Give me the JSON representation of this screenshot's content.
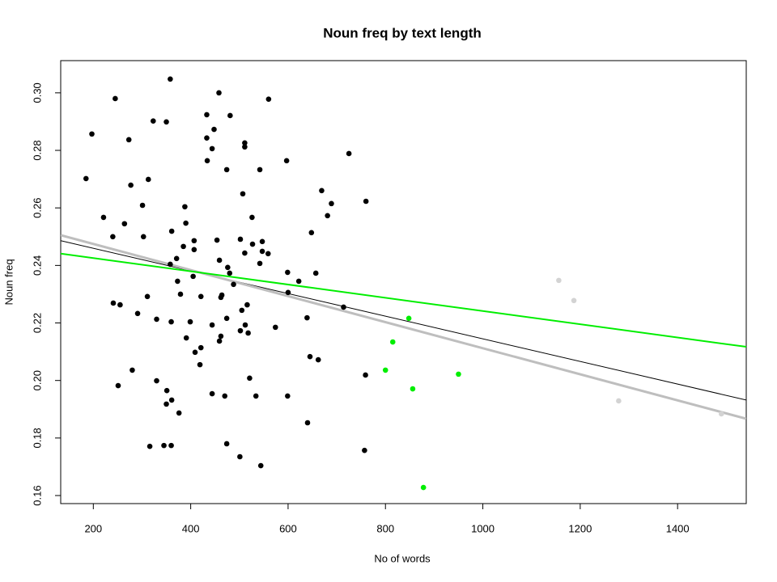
{
  "chart_data": {
    "type": "scatter",
    "title": "Noun freq by text length",
    "x_label": "No of words",
    "y_label": "Noun freq",
    "xlim": [
      133,
      1541
    ],
    "ylim": [
      0.1572,
      0.3112
    ],
    "xticks": [
      200,
      400,
      600,
      800,
      1000,
      1200,
      1400
    ],
    "yticks": [
      0.16,
      0.18,
      {
        "value": 0.2,
        "label": "0.20"
      },
      0.22,
      0.24,
      0.26,
      0.28,
      {
        "value": 0.3,
        "label": "0.30"
      }
    ],
    "grid": false,
    "series": [
      {
        "color": "#000000",
        "x": [
          197,
          185,
          245,
          221,
          240,
          241,
          255,
          251,
          277,
          273,
          264,
          301,
          303,
          311,
          291,
          280,
          313,
          323,
          350,
          358,
          330,
          330,
          316,
          345,
          360,
          361,
          358,
          371,
          373,
          379,
          360,
          351,
          361,
          350,
          376,
          388,
          390,
          385,
          407,
          407,
          405,
          399,
          391,
          421,
          409,
          419,
          421,
          433,
          433,
          448,
          444,
          434,
          458,
          481,
          474,
          511,
          511,
          454,
          459,
          476,
          480,
          488,
          464,
          462,
          444,
          462,
          459,
          474,
          444,
          470,
          474,
          501,
          507,
          502,
          511,
          526,
          527,
          505,
          512,
          516,
          518,
          502,
          521,
          534,
          544,
          542,
          547,
          547,
          559,
          560,
          542,
          574,
          597,
          599,
          600,
          622,
          599,
          640,
          639,
          645,
          662,
          648,
          657,
          669,
          681,
          689,
          714,
          725,
          760,
          759,
          757
        ],
        "y": [
          0.2857,
          0.2702,
          0.298,
          0.2567,
          0.25,
          0.2269,
          0.2263,
          0.1982,
          0.2679,
          0.2837,
          0.2545,
          0.2609,
          0.25,
          0.2292,
          0.2233,
          0.2036,
          0.2699,
          0.2902,
          0.2899,
          0.3048,
          0.2213,
          0.1999,
          0.1771,
          0.1774,
          0.1774,
          0.2519,
          0.2404,
          0.2424,
          0.2345,
          0.23,
          0.2204,
          0.1965,
          0.1932,
          0.1918,
          0.1887,
          0.2604,
          0.2547,
          0.2466,
          0.2486,
          0.2455,
          0.2362,
          0.2204,
          0.2148,
          0.2114,
          0.2098,
          0.2055,
          0.2292,
          0.2924,
          0.2843,
          0.2873,
          0.2806,
          0.2764,
          0.3,
          0.2921,
          0.2733,
          0.2826,
          0.2812,
          0.2488,
          0.2418,
          0.2393,
          0.2373,
          0.2334,
          0.2297,
          0.2289,
          0.2193,
          0.2154,
          0.2137,
          0.2216,
          0.1954,
          0.1946,
          0.178,
          0.1735,
          0.2649,
          0.2491,
          0.2443,
          0.2567,
          0.2474,
          0.2244,
          0.2193,
          0.2263,
          0.2165,
          0.2173,
          0.2008,
          0.1946,
          0.1704,
          0.2733,
          0.2483,
          0.2449,
          0.2441,
          0.2978,
          0.2407,
          0.2185,
          0.2764,
          0.2376,
          0.2306,
          0.2345,
          0.1946,
          0.1853,
          0.2218,
          0.2083,
          0.2072,
          0.2514,
          0.2373,
          0.266,
          0.2573,
          0.2615,
          0.2255,
          0.2789,
          0.2623,
          0.2019,
          0.1757
        ]
      },
      {
        "color": "#00ee00",
        "x": [
          848,
          815,
          800,
          856,
          950,
          878
        ],
        "y": [
          0.2216,
          0.2134,
          0.2036,
          0.1971,
          0.2022,
          0.1628
        ]
      },
      {
        "color": "#d3d3d3",
        "x": [
          1156,
          1187,
          1279,
          1490
        ],
        "y": [
          0.2348,
          0.2278,
          0.1929,
          0.1884
        ]
      }
    ],
    "lines": [
      {
        "color": "#000000",
        "width": 1,
        "x": [
          133,
          1541
        ],
        "y": [
          0.2486,
          0.1932
        ]
      },
      {
        "color": "#bebebe",
        "width": 3,
        "x": [
          133,
          1541
        ],
        "y": [
          0.2505,
          0.1867
        ]
      },
      {
        "color": "#00ee00",
        "width": 2,
        "x": [
          133,
          1541
        ],
        "y": [
          0.2441,
          0.2117
        ]
      }
    ]
  }
}
